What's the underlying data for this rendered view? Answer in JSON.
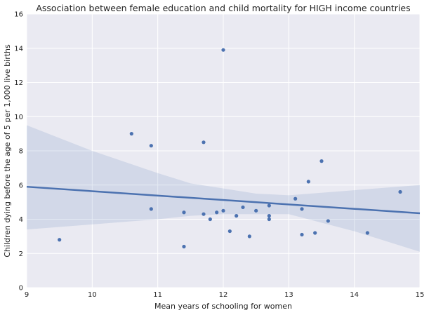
{
  "chart_data": {
    "type": "scatter",
    "title": "Association between female education and child mortality for HIGH income countries",
    "xlabel": "Mean years of schooling for women",
    "ylabel": "Children dying before the age of 5 per 1,000 live births",
    "xlim": [
      9,
      15
    ],
    "ylim": [
      0,
      16
    ],
    "x_ticks": [
      9,
      10,
      11,
      12,
      13,
      14,
      15
    ],
    "y_ticks": [
      0,
      2,
      4,
      6,
      8,
      10,
      12,
      14,
      16
    ],
    "grid": true,
    "points": [
      {
        "x": 9.5,
        "y": 2.8
      },
      {
        "x": 10.6,
        "y": 9.0
      },
      {
        "x": 10.9,
        "y": 8.3
      },
      {
        "x": 10.9,
        "y": 4.6
      },
      {
        "x": 11.4,
        "y": 4.4
      },
      {
        "x": 11.4,
        "y": 2.4
      },
      {
        "x": 11.7,
        "y": 8.5
      },
      {
        "x": 11.7,
        "y": 4.3
      },
      {
        "x": 11.8,
        "y": 4.0
      },
      {
        "x": 11.9,
        "y": 4.4
      },
      {
        "x": 12.0,
        "y": 13.9
      },
      {
        "x": 12.0,
        "y": 4.5
      },
      {
        "x": 12.1,
        "y": 3.3
      },
      {
        "x": 12.2,
        "y": 4.2
      },
      {
        "x": 12.3,
        "y": 4.7
      },
      {
        "x": 12.4,
        "y": 3.0
      },
      {
        "x": 12.5,
        "y": 4.5
      },
      {
        "x": 12.7,
        "y": 4.8
      },
      {
        "x": 12.7,
        "y": 4.2
      },
      {
        "x": 12.7,
        "y": 4.0
      },
      {
        "x": 13.1,
        "y": 5.2
      },
      {
        "x": 13.2,
        "y": 4.6
      },
      {
        "x": 13.2,
        "y": 3.1
      },
      {
        "x": 13.3,
        "y": 6.2
      },
      {
        "x": 13.4,
        "y": 3.2
      },
      {
        "x": 13.5,
        "y": 7.4
      },
      {
        "x": 13.6,
        "y": 3.9
      },
      {
        "x": 14.2,
        "y": 3.2
      },
      {
        "x": 14.7,
        "y": 5.6
      }
    ],
    "regression_line": [
      {
        "x": 9,
        "y": 5.9
      },
      {
        "x": 15,
        "y": 4.35
      }
    ],
    "confidence_band": {
      "x": [
        9,
        10,
        11,
        11.5,
        12,
        12.5,
        13,
        14,
        15
      ],
      "upper": [
        9.5,
        8.0,
        6.7,
        6.1,
        5.8,
        5.5,
        5.4,
        5.7,
        6.0
      ],
      "lower": [
        3.4,
        3.7,
        4.0,
        4.2,
        4.3,
        4.3,
        4.3,
        3.3,
        2.1
      ]
    },
    "colors": {
      "background": "#eaeaf2",
      "grid": "#ffffff",
      "points": "#4c72b0",
      "line": "#4c72b0",
      "band": "#4c72b0"
    }
  }
}
